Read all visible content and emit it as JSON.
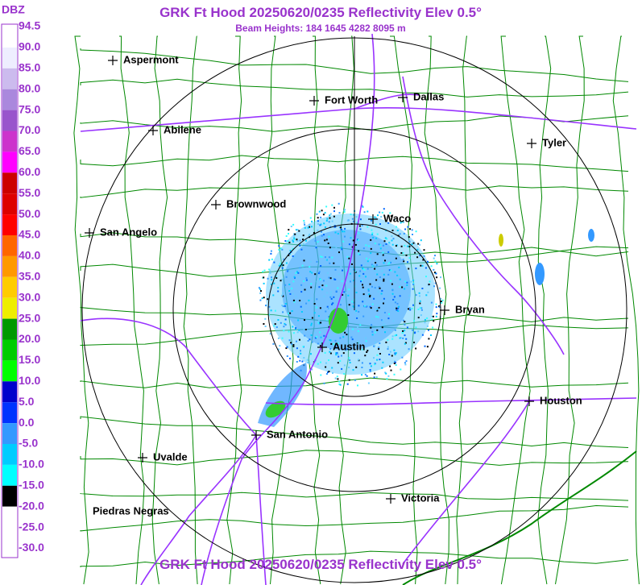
{
  "header": {
    "title": "GRK Ft Hood 20250620/0235 Reflectivity Elev 0.5°",
    "subtitle": "Beam Heights: 184 1645 4282 8095 m"
  },
  "footer": {
    "title": "GRK Ft Hood 20250620/0235 Reflectivity Elev 0.5°"
  },
  "legend": {
    "unit": "DBZ",
    "labels": [
      "94.5",
      "90.0",
      "85.0",
      "80.0",
      "75.0",
      "70.0",
      "65.0",
      "60.0",
      "55.0",
      "50.0",
      "45.0",
      "40.0",
      "35.0",
      "30.0",
      "25.0",
      "20.0",
      "15.0",
      "10.0",
      "5.0",
      "0.0",
      "-5.0",
      "-10.0",
      "-15.0",
      "-20.0",
      "-25.0",
      "-30.0"
    ]
  },
  "cities": [
    "Aspermont",
    "Fort Worth",
    "Dallas",
    "Abilene",
    "Tyler",
    "Brownwood",
    "Waco",
    "San Angelo",
    "Bryan",
    "Austin",
    "Houston",
    "San Antonio",
    "Uvalde",
    "Victoria",
    "Piedras Negras"
  ]
}
